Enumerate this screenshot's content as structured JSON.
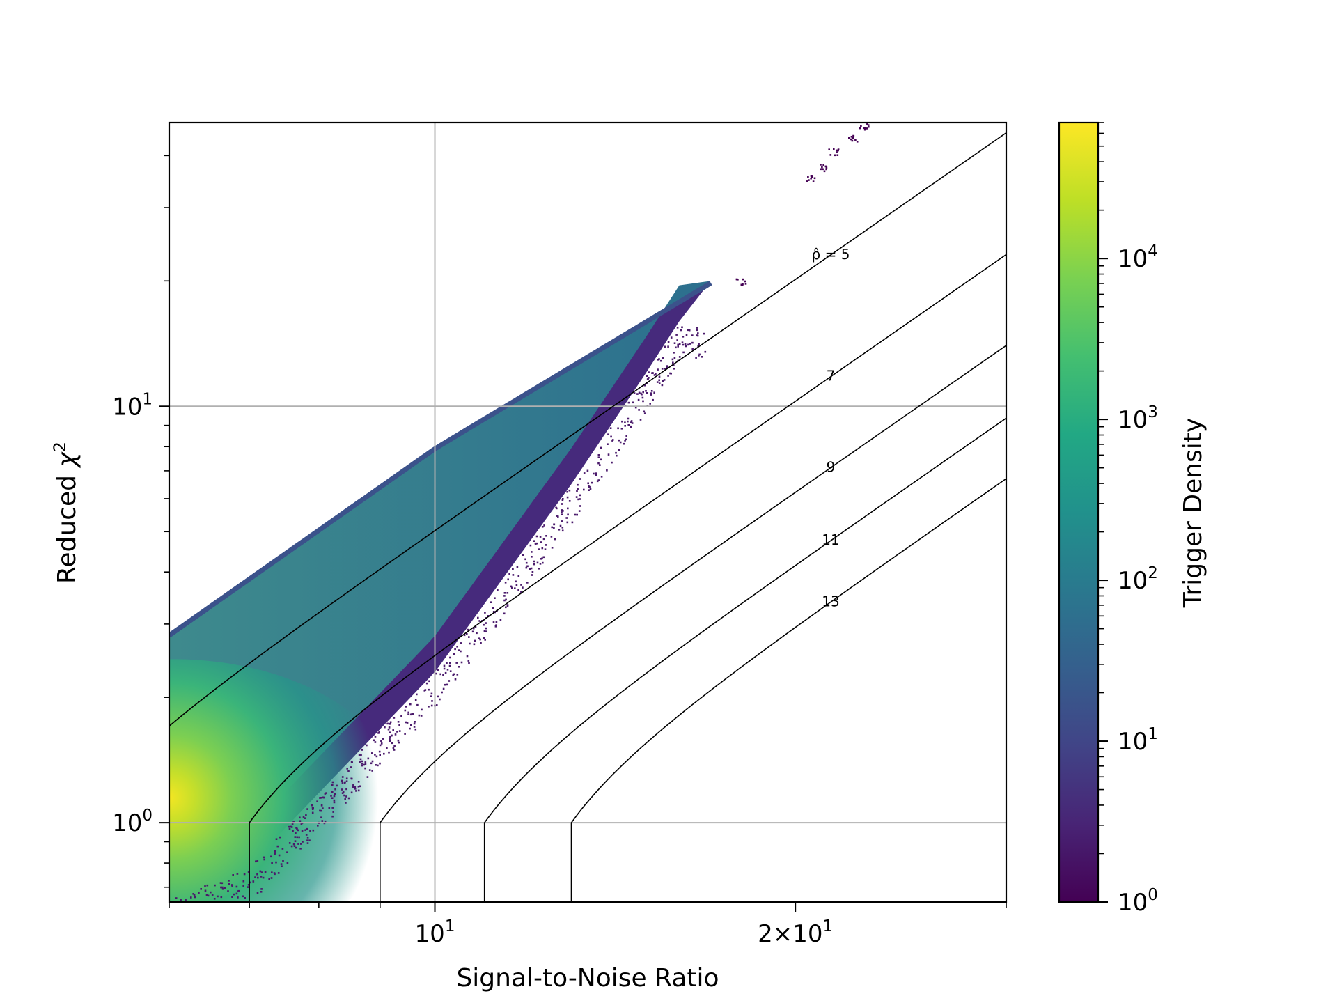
{
  "chart_data": {
    "type": "heatmap",
    "title": "",
    "xlabel": "Signal-to-Noise Ratio",
    "ylabel_text": "Reduced ",
    "ylabel_symbol": "χ",
    "ylabel_sup": "2",
    "x_scale": "log",
    "y_scale": "log",
    "xlim": [
      6,
      30
    ],
    "ylim": [
      0.645,
      48
    ],
    "grid": true,
    "x_ticks": [
      {
        "value": 10,
        "base": "10",
        "exp": "1",
        "prefix": ""
      },
      {
        "value": 20,
        "base": "10",
        "exp": "1",
        "prefix": "2×"
      }
    ],
    "y_ticks": [
      {
        "value": 1,
        "base": "10",
        "exp": "0"
      },
      {
        "value": 10,
        "base": "10",
        "exp": "1"
      }
    ],
    "colorbar": {
      "label": "Trigger Density",
      "scale": "log",
      "range": [
        1,
        70000
      ],
      "colormap": "viridis",
      "ticks": [
        {
          "value": 1,
          "base": "10",
          "exp": "0"
        },
        {
          "value": 10,
          "base": "10",
          "exp": "1"
        },
        {
          "value": 100,
          "base": "10",
          "exp": "2"
        },
        {
          "value": 1000,
          "base": "10",
          "exp": "3"
        },
        {
          "value": 10000,
          "base": "10",
          "exp": "4"
        }
      ]
    },
    "density": {
      "description": "hexbin trigger density",
      "upper_edge": [
        [
          6,
          2.85
        ],
        [
          10,
          8.0
        ],
        [
          14,
          14.3
        ],
        [
          17,
          20.0
        ]
      ],
      "lower_edge": [
        [
          6,
          0.66
        ],
        [
          7,
          0.79
        ],
        [
          10,
          2.3
        ],
        [
          13,
          6.5
        ],
        [
          15,
          12.0
        ],
        [
          16,
          16.0
        ]
      ],
      "peak": {
        "x": 6.05,
        "y": 1.1,
        "density": 70000
      },
      "outliers": [
        [
          21.5,
          41
        ],
        [
          22.3,
          44
        ],
        [
          22.8,
          47
        ],
        [
          21.0,
          37.5
        ],
        [
          20.6,
          35.5
        ],
        [
          18.0,
          20.0
        ]
      ]
    },
    "contours": {
      "formula": "rho_hat = snr / ((1 + chi2^3) / 2)^(1/6) for chi2 > 1, else snr",
      "levels": [
        {
          "value": 5,
          "label": "ρ̂ = 5"
        },
        {
          "value": 7,
          "label": "7"
        },
        {
          "value": 9,
          "label": "9"
        },
        {
          "value": 11,
          "label": "11"
        },
        {
          "value": 13,
          "label": "13"
        }
      ]
    },
    "colors": {
      "grid": "#b0b0b0",
      "contour": "#000000",
      "axes": "#000000"
    }
  }
}
